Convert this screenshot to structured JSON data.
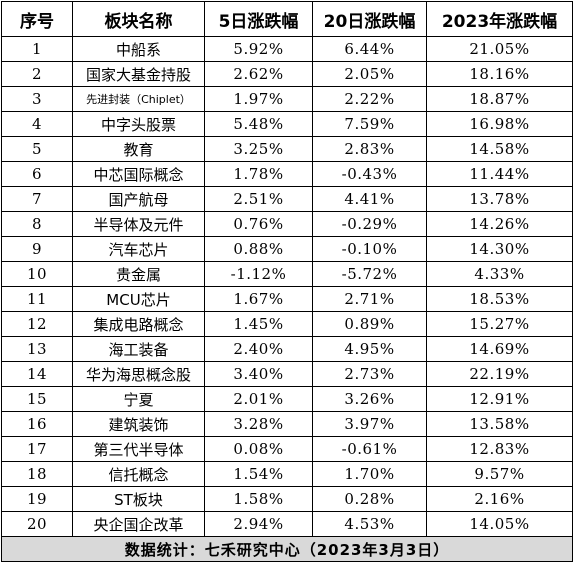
{
  "table": {
    "headers": [
      "序号",
      "板块名称",
      "5日涨跌幅",
      "20日涨跌幅",
      "2023年涨跌幅"
    ],
    "rows": [
      {
        "no": "1",
        "name": "中船系",
        "d5": "5.92%",
        "d20": "6.44%",
        "ytd": "21.05%"
      },
      {
        "no": "2",
        "name": "国家大基金持股",
        "d5": "2.62%",
        "d20": "2.05%",
        "ytd": "18.16%"
      },
      {
        "no": "3",
        "name": "先进封装（Chiplet）",
        "d5": "1.97%",
        "d20": "2.22%",
        "ytd": "18.87%"
      },
      {
        "no": "4",
        "name": "中字头股票",
        "d5": "5.48%",
        "d20": "7.59%",
        "ytd": "16.98%"
      },
      {
        "no": "5",
        "name": "教育",
        "d5": "3.25%",
        "d20": "2.83%",
        "ytd": "14.58%"
      },
      {
        "no": "6",
        "name": "中芯国际概念",
        "d5": "1.78%",
        "d20": "-0.43%",
        "ytd": "11.44%"
      },
      {
        "no": "7",
        "name": "国产航母",
        "d5": "2.51%",
        "d20": "4.41%",
        "ytd": "13.78%"
      },
      {
        "no": "8",
        "name": "半导体及元件",
        "d5": "0.76%",
        "d20": "-0.29%",
        "ytd": "14.26%"
      },
      {
        "no": "9",
        "name": "汽车芯片",
        "d5": "0.88%",
        "d20": "-0.10%",
        "ytd": "14.30%"
      },
      {
        "no": "10",
        "name": "贵金属",
        "d5": "-1.12%",
        "d20": "-5.72%",
        "ytd": "4.33%"
      },
      {
        "no": "11",
        "name": "MCU芯片",
        "d5": "1.67%",
        "d20": "2.71%",
        "ytd": "18.53%"
      },
      {
        "no": "12",
        "name": "集成电路概念",
        "d5": "1.45%",
        "d20": "0.89%",
        "ytd": "15.27%"
      },
      {
        "no": "13",
        "name": "海工装备",
        "d5": "2.40%",
        "d20": "4.95%",
        "ytd": "14.69%"
      },
      {
        "no": "14",
        "name": "华为海思概念股",
        "d5": "3.40%",
        "d20": "2.73%",
        "ytd": "22.19%"
      },
      {
        "no": "15",
        "name": "宁夏",
        "d5": "2.01%",
        "d20": "3.26%",
        "ytd": "12.91%"
      },
      {
        "no": "16",
        "name": "建筑装饰",
        "d5": "3.28%",
        "d20": "3.97%",
        "ytd": "13.58%"
      },
      {
        "no": "17",
        "name": "第三代半导体",
        "d5": "0.08%",
        "d20": "-0.61%",
        "ytd": "12.83%"
      },
      {
        "no": "18",
        "name": "信托概念",
        "d5": "1.54%",
        "d20": "1.70%",
        "ytd": "9.57%"
      },
      {
        "no": "19",
        "name": "ST板块",
        "d5": "1.58%",
        "d20": "0.28%",
        "ytd": "2.16%"
      },
      {
        "no": "20",
        "name": "央企国企改革",
        "d5": "2.94%",
        "d20": "4.53%",
        "ytd": "14.05%"
      }
    ],
    "footer": "数据统计：七禾研究中心（2023年3月3日）"
  }
}
